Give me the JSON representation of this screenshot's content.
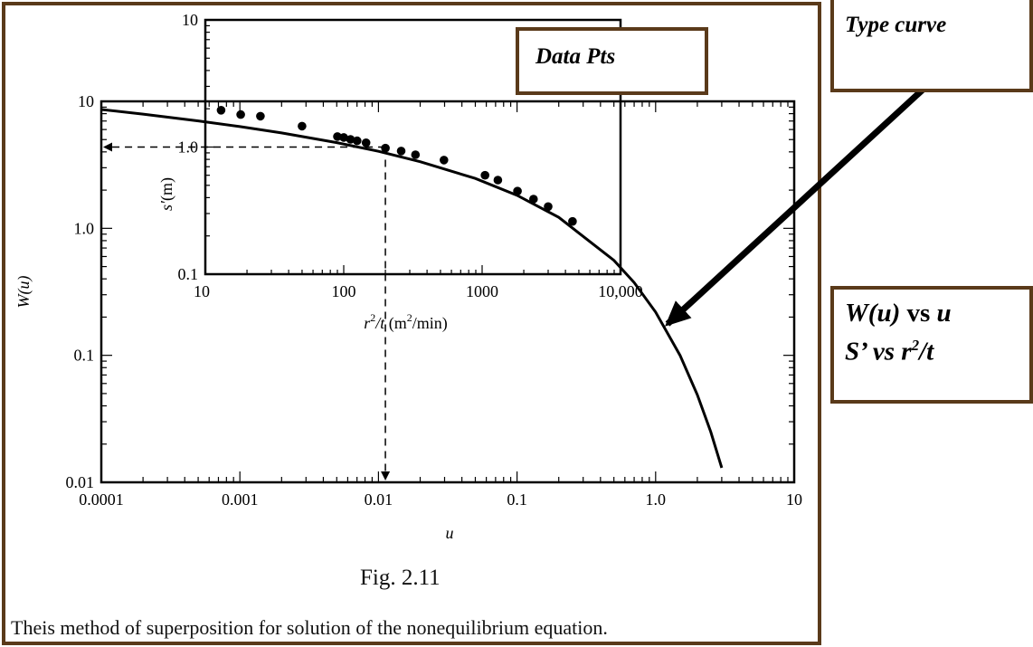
{
  "labels": {
    "data_pts": "Data Pts",
    "type_curve": "Type curve",
    "fig_number": "Fig. 2.11",
    "caption": "Theis method of superposition for solution of the nonequilibrium equation.",
    "legend_line1_a": "W(u)",
    "legend_line1_b": " vs ",
    "legend_line1_c": "u",
    "legend_line2_a": "S’ vs  r",
    "legend_line2_sup": "2",
    "legend_line2_b": "/t"
  },
  "colors": {
    "frame": "#5a3a1a",
    "curve": "#000000",
    "points": "#000000"
  },
  "chart_data": [
    {
      "type": "line",
      "name": "type-curve",
      "x_scale": "log",
      "y_scale": "log",
      "xlim": [
        0.0001,
        10
      ],
      "ylim": [
        0.01,
        10
      ],
      "xlabel": "u",
      "ylabel": "W(u)",
      "x_ticks": [
        "0.0001",
        "0.001",
        "0.01",
        "0.1",
        "1.0",
        "10"
      ],
      "y_ticks": [
        "0.01",
        "0.1",
        "1.0",
        "10"
      ],
      "series": [
        {
          "x": [
            0.0001,
            0.0002,
            0.0005,
            0.001,
            0.002,
            0.005,
            0.01,
            0.02,
            0.05,
            0.1,
            0.2,
            0.5,
            0.7,
            1.0,
            1.5,
            2.0,
            2.5,
            3.0
          ],
          "y": [
            8.63,
            7.94,
            7.02,
            6.33,
            5.64,
            4.73,
            4.04,
            3.35,
            2.47,
            1.82,
            1.22,
            0.56,
            0.374,
            0.219,
            0.1,
            0.0489,
            0.0249,
            0.013
          ]
        }
      ]
    },
    {
      "type": "scatter",
      "name": "data-points",
      "x_scale": "log",
      "y_scale": "log",
      "xlim": [
        10,
        10000
      ],
      "ylim": [
        0.1,
        10
      ],
      "xlabel": "r2/t (m2/min)",
      "ylabel": "s′(m)",
      "x_ticks": [
        "10",
        "100",
        "1000",
        "10,000"
      ],
      "y_ticks": [
        "0.1",
        "1.0",
        "10"
      ],
      "series": [
        {
          "x": [
            13,
            18,
            25,
            50,
            90,
            100,
            112,
            125,
            145,
            200,
            260,
            330,
            530,
            1050,
            1300,
            1800,
            2350,
            3000,
            4500
          ],
          "y": [
            1.95,
            1.8,
            1.75,
            1.46,
            1.21,
            1.19,
            1.15,
            1.12,
            1.08,
            0.98,
            0.93,
            0.87,
            0.79,
            0.6,
            0.55,
            0.45,
            0.39,
            0.34,
            0.26
          ]
        }
      ]
    }
  ]
}
